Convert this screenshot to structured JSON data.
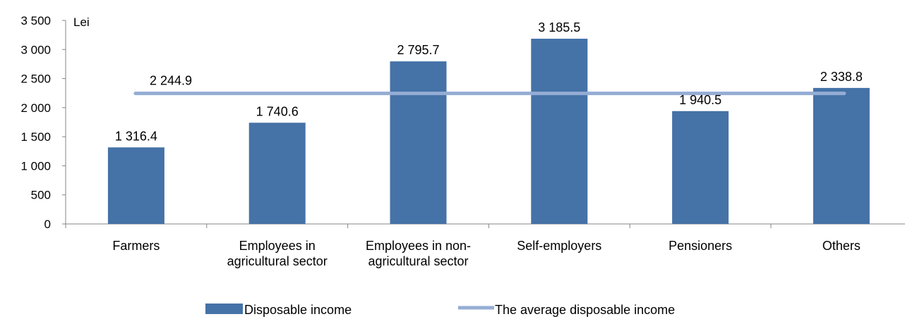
{
  "chart_data": {
    "type": "bar",
    "unit_label": "Lei",
    "categories": [
      [
        "Farmers"
      ],
      [
        "Employees in",
        "agricultural sector"
      ],
      [
        "Employees in non-",
        "agricultural sector"
      ],
      [
        "Self-employers"
      ],
      [
        "Pensioners"
      ],
      [
        "Others"
      ]
    ],
    "series": [
      {
        "name": "Disposable income",
        "type": "bar",
        "color": "#4572a7",
        "values": [
          1316.4,
          1740.6,
          2795.7,
          3185.5,
          1940.5,
          2338.8
        ],
        "value_labels": [
          "1 316.4",
          "1 740.6",
          "2 795.7",
          "3 185.5",
          "1 940.5",
          "2 338.8"
        ]
      },
      {
        "name": "The average disposable income",
        "type": "line",
        "color": "#95add4",
        "value": 2244.9,
        "value_label": "2 244.9"
      }
    ],
    "ylim": [
      0,
      3500
    ],
    "yticks": [
      0,
      500,
      1000,
      1500,
      2000,
      2500,
      3000,
      3500
    ],
    "ytick_labels": [
      "0",
      "500",
      "1 000",
      "1 500",
      "2 000",
      "2 500",
      "3 000",
      "3 500"
    ],
    "grid": false,
    "legend_position": "bottom"
  }
}
